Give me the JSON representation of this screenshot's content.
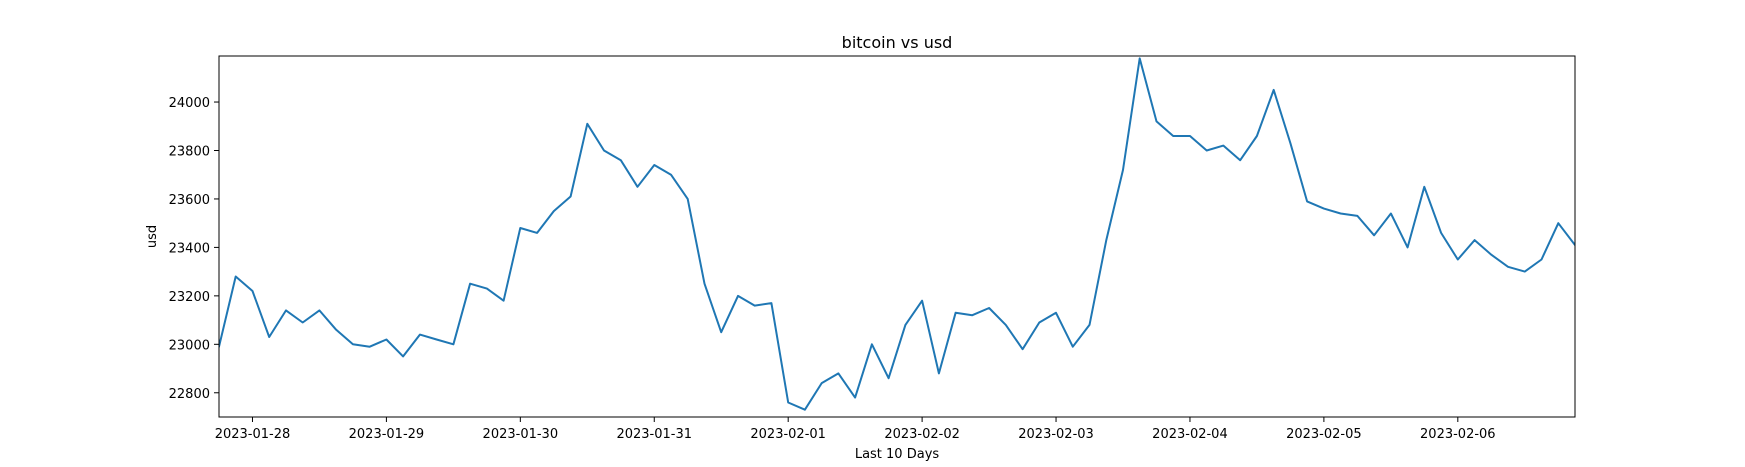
{
  "chart_data": {
    "type": "line",
    "title": "bitcoin vs usd",
    "xlabel": "Last 10 Days",
    "ylabel": "usd",
    "xlim": [
      "2023-01-27T18:00",
      "2023-02-06T21:00"
    ],
    "ylim": [
      22700,
      24190
    ],
    "grid": false,
    "legend": "none",
    "xticks": [
      "2023-01-28",
      "2023-01-29",
      "2023-01-30",
      "2023-01-31",
      "2023-02-01",
      "2023-02-02",
      "2023-02-03",
      "2023-02-04",
      "2023-02-05",
      "2023-02-06"
    ],
    "yticks": [
      22800,
      23000,
      23200,
      23400,
      23600,
      23800,
      24000
    ],
    "series": [
      {
        "color": "#1f77b4",
        "points": [
          [
            "2023-01-27T18:00",
            22990
          ],
          [
            "2023-01-27T21:00",
            23280
          ],
          [
            "2023-01-28T00:00",
            23220
          ],
          [
            "2023-01-28T03:00",
            23030
          ],
          [
            "2023-01-28T06:00",
            23140
          ],
          [
            "2023-01-28T09:00",
            23090
          ],
          [
            "2023-01-28T12:00",
            23140
          ],
          [
            "2023-01-28T15:00",
            23060
          ],
          [
            "2023-01-28T18:00",
            23000
          ],
          [
            "2023-01-28T21:00",
            22990
          ],
          [
            "2023-01-29T00:00",
            23020
          ],
          [
            "2023-01-29T03:00",
            22950
          ],
          [
            "2023-01-29T06:00",
            23040
          ],
          [
            "2023-01-29T09:00",
            23020
          ],
          [
            "2023-01-29T12:00",
            23000
          ],
          [
            "2023-01-29T15:00",
            23250
          ],
          [
            "2023-01-29T18:00",
            23230
          ],
          [
            "2023-01-29T21:00",
            23180
          ],
          [
            "2023-01-30T00:00",
            23480
          ],
          [
            "2023-01-30T03:00",
            23460
          ],
          [
            "2023-01-30T06:00",
            23550
          ],
          [
            "2023-01-30T09:00",
            23610
          ],
          [
            "2023-01-30T12:00",
            23910
          ],
          [
            "2023-01-30T15:00",
            23800
          ],
          [
            "2023-01-30T18:00",
            23760
          ],
          [
            "2023-01-30T21:00",
            23650
          ],
          [
            "2023-01-31T00:00",
            23740
          ],
          [
            "2023-01-31T03:00",
            23700
          ],
          [
            "2023-01-31T06:00",
            23600
          ],
          [
            "2023-01-31T09:00",
            23250
          ],
          [
            "2023-01-31T12:00",
            23050
          ],
          [
            "2023-01-31T15:00",
            23200
          ],
          [
            "2023-01-31T18:00",
            23160
          ],
          [
            "2023-01-31T21:00",
            23170
          ],
          [
            "2023-02-01T00:00",
            22760
          ],
          [
            "2023-02-01T03:00",
            22730
          ],
          [
            "2023-02-01T06:00",
            22840
          ],
          [
            "2023-02-01T09:00",
            22880
          ],
          [
            "2023-02-01T12:00",
            22780
          ],
          [
            "2023-02-01T15:00",
            23000
          ],
          [
            "2023-02-01T18:00",
            22860
          ],
          [
            "2023-02-01T21:00",
            23080
          ],
          [
            "2023-02-02T00:00",
            23180
          ],
          [
            "2023-02-02T03:00",
            22880
          ],
          [
            "2023-02-02T06:00",
            23130
          ],
          [
            "2023-02-02T09:00",
            23120
          ],
          [
            "2023-02-02T12:00",
            23150
          ],
          [
            "2023-02-02T15:00",
            23080
          ],
          [
            "2023-02-02T18:00",
            22980
          ],
          [
            "2023-02-02T21:00",
            23090
          ],
          [
            "2023-02-03T00:00",
            23130
          ],
          [
            "2023-02-03T03:00",
            22990
          ],
          [
            "2023-02-03T06:00",
            23080
          ],
          [
            "2023-02-03T09:00",
            23430
          ],
          [
            "2023-02-03T12:00",
            23720
          ],
          [
            "2023-02-03T15:00",
            24180
          ],
          [
            "2023-02-03T18:00",
            23920
          ],
          [
            "2023-02-03T21:00",
            23860
          ],
          [
            "2023-02-04T00:00",
            23860
          ],
          [
            "2023-02-04T03:00",
            23800
          ],
          [
            "2023-02-04T06:00",
            23820
          ],
          [
            "2023-02-04T09:00",
            23760
          ],
          [
            "2023-02-04T12:00",
            23860
          ],
          [
            "2023-02-04T15:00",
            24050
          ],
          [
            "2023-02-04T18:00",
            23830
          ],
          [
            "2023-02-04T21:00",
            23590
          ],
          [
            "2023-02-05T00:00",
            23560
          ],
          [
            "2023-02-05T03:00",
            23540
          ],
          [
            "2023-02-05T06:00",
            23530
          ],
          [
            "2023-02-05T09:00",
            23450
          ],
          [
            "2023-02-05T12:00",
            23540
          ],
          [
            "2023-02-05T15:00",
            23400
          ],
          [
            "2023-02-05T18:00",
            23650
          ],
          [
            "2023-02-05T21:00",
            23460
          ],
          [
            "2023-02-06T00:00",
            23350
          ],
          [
            "2023-02-06T03:00",
            23430
          ],
          [
            "2023-02-06T06:00",
            23370
          ],
          [
            "2023-02-06T09:00",
            23320
          ],
          [
            "2023-02-06T12:00",
            23300
          ],
          [
            "2023-02-06T15:00",
            23350
          ],
          [
            "2023-02-06T18:00",
            23500
          ],
          [
            "2023-02-06T21:00",
            23410
          ]
        ]
      }
    ]
  }
}
